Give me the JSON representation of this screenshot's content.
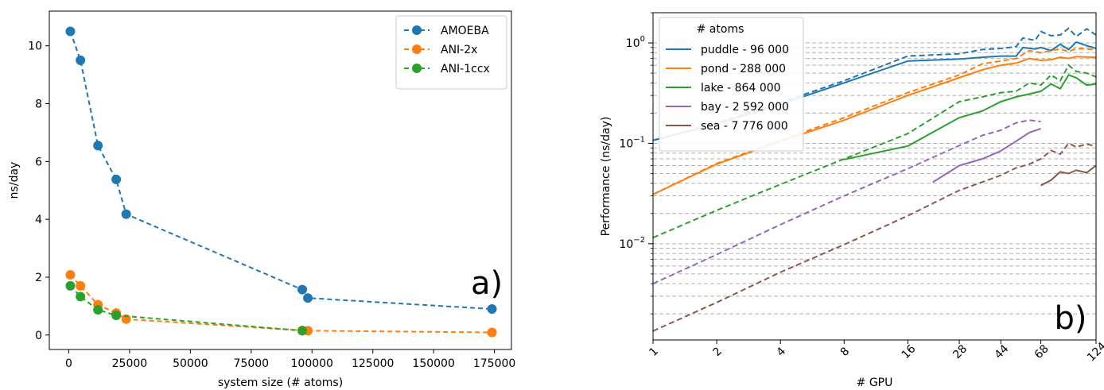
{
  "chart_data": [
    {
      "type": "line",
      "panel_label": "a)",
      "xlabel": "system size (# atoms)",
      "ylabel": "ns/day",
      "xlim": [
        -8000,
        182000
      ],
      "ylim": [
        -0.5,
        11.2
      ],
      "xticks": [
        0,
        25000,
        50000,
        75000,
        100000,
        125000,
        150000,
        175000
      ],
      "xtick_labels": [
        "0",
        "25000",
        "50000",
        "75000",
        "100000",
        "125000",
        "150000",
        "175000"
      ],
      "yticks": [
        0,
        2,
        4,
        6,
        8,
        10
      ],
      "ytick_labels": [
        "0",
        "2",
        "4",
        "6",
        "8",
        "10"
      ],
      "legend_position": "top-right",
      "grid": false,
      "series": [
        {
          "name": "AMOEBA",
          "color": "#1f77b4",
          "points": [
            [
              648,
              10.5
            ],
            [
              4800,
              9.5
            ],
            [
              12000,
              6.55
            ],
            [
              19500,
              5.38
            ],
            [
              23600,
              4.18
            ],
            [
              96000,
              1.57
            ],
            [
              98300,
              1.28
            ],
            [
              174000,
              0.9
            ]
          ]
        },
        {
          "name": "ANI-2x",
          "color": "#ff7f0e",
          "points": [
            [
              648,
              2.08
            ],
            [
              4800,
              1.7
            ],
            [
              12000,
              1.05
            ],
            [
              19500,
              0.76
            ],
            [
              23600,
              0.55
            ],
            [
              96000,
              0.16
            ],
            [
              98300,
              0.15
            ],
            [
              174000,
              0.09
            ]
          ]
        },
        {
          "name": "ANI-1ccx",
          "color": "#2ca02c",
          "points": [
            [
              648,
              1.7
            ],
            [
              4800,
              1.33
            ],
            [
              12000,
              0.87
            ],
            [
              19500,
              0.68
            ],
            [
              96000,
              0.15
            ]
          ]
        }
      ]
    },
    {
      "type": "line",
      "panel_label": "b)",
      "xlabel": "# GPU",
      "ylabel": "Performance (ns/day)",
      "xscale": "log",
      "yscale": "log",
      "xlim": [
        1,
        124
      ],
      "ylim": [
        0.0011,
        2.0
      ],
      "xticks": [
        1,
        2,
        4,
        8,
        16,
        28,
        44,
        68,
        124
      ],
      "xtick_labels": [
        "1",
        "2",
        "4",
        "8",
        "16",
        "28",
        "44",
        "68",
        "124"
      ],
      "yticks": [
        0.01,
        0.1,
        1
      ],
      "ytick_labels": [
        "10^-2",
        "10^-1",
        "10^0"
      ],
      "grid": true,
      "legend_title": "# atoms",
      "legend_position": "top-left",
      "series": [
        {
          "name": "puddle - 96 000",
          "color": "#1f77b4",
          "solid": [
            [
              1,
              0.107
            ],
            [
              2,
              0.155
            ],
            [
              4,
              0.245
            ],
            [
              8,
              0.4
            ],
            [
              16,
              0.66
            ],
            [
              28,
              0.69
            ],
            [
              36,
              0.72
            ],
            [
              44,
              0.74
            ],
            [
              52,
              0.74
            ],
            [
              56,
              0.9
            ],
            [
              64,
              0.87
            ],
            [
              68,
              0.9
            ],
            [
              76,
              0.84
            ],
            [
              84,
              0.97
            ],
            [
              92,
              0.86
            ],
            [
              100,
              1.02
            ],
            [
              112,
              0.94
            ],
            [
              124,
              0.88
            ]
          ],
          "dashed": [
            [
              1,
              0.107
            ],
            [
              2,
              0.16
            ],
            [
              4,
              0.255
            ],
            [
              8,
              0.42
            ],
            [
              16,
              0.74
            ],
            [
              28,
              0.78
            ],
            [
              36,
              0.86
            ],
            [
              44,
              0.88
            ],
            [
              52,
              0.92
            ],
            [
              56,
              1.12
            ],
            [
              64,
              1.06
            ],
            [
              68,
              1.3
            ],
            [
              76,
              1.18
            ],
            [
              84,
              1.2
            ],
            [
              92,
              1.4
            ],
            [
              100,
              1.16
            ],
            [
              112,
              1.38
            ],
            [
              124,
              1.2
            ]
          ]
        },
        {
          "name": "pond - 288 000",
          "color": "#ff7f0e",
          "solid": [
            [
              1,
              0.031
            ],
            [
              2,
              0.062
            ],
            [
              4,
              0.105
            ],
            [
              8,
              0.17
            ],
            [
              16,
              0.3
            ],
            [
              28,
              0.45
            ],
            [
              36,
              0.54
            ],
            [
              44,
              0.6
            ],
            [
              52,
              0.63
            ],
            [
              60,
              0.7
            ],
            [
              68,
              0.67
            ],
            [
              76,
              0.68
            ],
            [
              84,
              0.72
            ],
            [
              92,
              0.7
            ],
            [
              100,
              0.73
            ],
            [
              124,
              0.72
            ]
          ],
          "dashed": [
            [
              1,
              0.031
            ],
            [
              2,
              0.063
            ],
            [
              4,
              0.107
            ],
            [
              8,
              0.18
            ],
            [
              16,
              0.32
            ],
            [
              28,
              0.48
            ],
            [
              36,
              0.62
            ],
            [
              44,
              0.66
            ],
            [
              52,
              0.7
            ],
            [
              60,
              0.84
            ],
            [
              68,
              0.8
            ],
            [
              76,
              0.84
            ],
            [
              84,
              0.87
            ],
            [
              92,
              0.82
            ],
            [
              100,
              0.88
            ],
            [
              124,
              0.86
            ]
          ]
        },
        {
          "name": "lake - 864 000",
          "color": "#2ca02c",
          "solid": [
            [
              8,
              0.069
            ],
            [
              16,
              0.094
            ],
            [
              28,
              0.18
            ],
            [
              36,
              0.21
            ],
            [
              44,
              0.26
            ],
            [
              52,
              0.29
            ],
            [
              60,
              0.31
            ],
            [
              68,
              0.33
            ],
            [
              76,
              0.39
            ],
            [
              84,
              0.35
            ],
            [
              92,
              0.48
            ],
            [
              100,
              0.45
            ],
            [
              112,
              0.38
            ],
            [
              124,
              0.39
            ]
          ],
          "dashed": [
            [
              1,
              0.0115
            ],
            [
              2,
              0.0215
            ],
            [
              4,
              0.039
            ],
            [
              8,
              0.07
            ],
            [
              16,
              0.125
            ],
            [
              28,
              0.26
            ],
            [
              36,
              0.29
            ],
            [
              44,
              0.32
            ],
            [
              52,
              0.33
            ],
            [
              60,
              0.4
            ],
            [
              68,
              0.38
            ],
            [
              76,
              0.48
            ],
            [
              84,
              0.42
            ],
            [
              92,
              0.6
            ],
            [
              100,
              0.52
            ],
            [
              112,
              0.5
            ],
            [
              124,
              0.46
            ]
          ]
        },
        {
          "name": "bay - 2 592 000",
          "color": "#9467bd",
          "solid": [
            [
              21,
              0.041
            ],
            [
              28,
              0.06
            ],
            [
              36,
              0.07
            ],
            [
              44,
              0.084
            ],
            [
              52,
              0.105
            ],
            [
              60,
              0.128
            ],
            [
              68,
              0.14
            ]
          ],
          "dashed": [
            [
              1,
              0.004
            ],
            [
              2,
              0.0078
            ],
            [
              4,
              0.0155
            ],
            [
              8,
              0.03
            ],
            [
              16,
              0.056
            ],
            [
              28,
              0.095
            ],
            [
              36,
              0.12
            ],
            [
              44,
              0.135
            ],
            [
              52,
              0.16
            ],
            [
              60,
              0.17
            ],
            [
              68,
              0.165
            ]
          ]
        },
        {
          "name": "sea - 7 776 000",
          "color": "#8c564b",
          "solid": [
            [
              68,
              0.038
            ],
            [
              76,
              0.043
            ],
            [
              84,
              0.052
            ],
            [
              92,
              0.05
            ],
            [
              100,
              0.054
            ],
            [
              112,
              0.051
            ],
            [
              124,
              0.06
            ]
          ],
          "dashed": [
            [
              1,
              0.00135
            ],
            [
              2,
              0.0026
            ],
            [
              4,
              0.0052
            ],
            [
              8,
              0.0098
            ],
            [
              16,
              0.019
            ],
            [
              28,
              0.034
            ],
            [
              44,
              0.048
            ],
            [
              52,
              0.057
            ],
            [
              60,
              0.062
            ],
            [
              68,
              0.07
            ],
            [
              76,
              0.085
            ],
            [
              84,
              0.078
            ],
            [
              92,
              0.1
            ],
            [
              100,
              0.092
            ],
            [
              112,
              0.098
            ],
            [
              124,
              0.094
            ]
          ]
        }
      ]
    }
  ]
}
